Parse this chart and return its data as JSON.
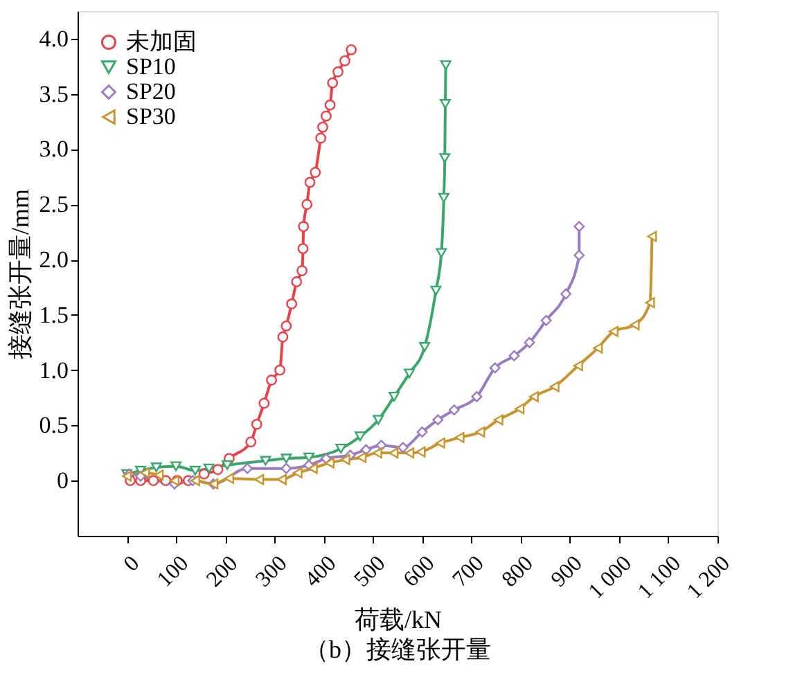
{
  "chart_data": {
    "type": "line",
    "title": "（b）接缝张开量",
    "xlabel": "荷载/kN",
    "ylabel": "接缝张开量/mm",
    "xlim": [
      -100,
      1200
    ],
    "ylim": [
      -0.5,
      4.25
    ],
    "xticks": [
      0,
      100,
      200,
      300,
      400,
      500,
      600,
      700,
      800,
      900,
      {
        "value": 1000,
        "label": "1 000"
      },
      {
        "value": 1100,
        "label": "1 100"
      },
      {
        "value": 1200,
        "label": "1 200"
      }
    ],
    "yticks": [
      0,
      0.5,
      {
        "value": 1,
        "label": "1.0"
      },
      1.5,
      {
        "value": 2,
        "label": "2.0"
      },
      2.5,
      {
        "value": 3,
        "label": "3.0"
      },
      3.5,
      {
        "value": 4,
        "label": "4.0"
      }
    ],
    "grid": false,
    "legend": "top left",
    "line_style": "solid",
    "series": [
      {
        "name": "未加固",
        "color": "#e8424a",
        "marker": "circle",
        "x": [
          7,
          28,
          54,
          79,
          102,
          125,
          157,
          185,
          208,
          252,
          264,
          279,
          294,
          311,
          317,
          324,
          335,
          345,
          356,
          358,
          359,
          366,
          372,
          383,
          394,
          398,
          405,
          413,
          418,
          429,
          443,
          456
        ],
        "values": [
          0,
          0,
          0,
          0,
          0,
          0,
          0.06,
          0.1,
          0.2,
          0.35,
          0.51,
          0.7,
          0.91,
          1.0,
          1.3,
          1.4,
          1.6,
          1.8,
          1.9,
          2.1,
          2.3,
          2.5,
          2.7,
          2.79,
          3.1,
          3.2,
          3.3,
          3.4,
          3.6,
          3.7,
          3.8,
          3.9
        ]
      },
      {
        "name": "SP10",
        "color": "#3aa66a",
        "marker": "triangle-down",
        "x": [
          0,
          28,
          60,
          100,
          139,
          167,
          204,
          282,
          324,
          370,
          435,
          474,
          511,
          543,
          574,
          605,
          628,
          639,
          644,
          646,
          647,
          648
        ],
        "values": [
          0.06,
          0.09,
          0.12,
          0.13,
          0.09,
          0.11,
          0.14,
          0.18,
          0.2,
          0.21,
          0.29,
          0.4,
          0.55,
          0.76,
          0.97,
          1.21,
          1.72,
          2.06,
          2.56,
          2.92,
          3.41,
          3.76
        ]
      },
      {
        "name": "SP20",
        "color": "#9b7bc0",
        "marker": "diamond",
        "x": [
          5,
          28,
          97,
          134,
          176,
          245,
          324,
          370,
          405,
          454,
          486,
          517,
          561,
          600,
          632,
          665,
          711,
          748,
          787,
          818,
          852,
          892,
          919,
          919
        ],
        "values": [
          0.06,
          0.04,
          -0.03,
          0,
          -0.03,
          0.11,
          0.11,
          0.14,
          0.2,
          0.23,
          0.28,
          0.32,
          0.3,
          0.44,
          0.55,
          0.64,
          0.76,
          1.02,
          1.13,
          1.25,
          1.45,
          1.69,
          2.04,
          2.3
        ]
      },
      {
        "name": "SP30",
        "color": "#c8942e",
        "marker": "triangle-left",
        "x": [
          0,
          37,
          65,
          97,
          139,
          176,
          208,
          269,
          315,
          347,
          378,
          412,
          444,
          477,
          509,
          542,
          574,
          597,
          637,
          676,
          718,
          755,
          798,
          827,
          869,
          917,
          957,
          989,
          1032,
          1063,
          1067
        ],
        "values": [
          0.04,
          0.07,
          0.05,
          0,
          0,
          -0.03,
          0.02,
          0.01,
          0.01,
          0.07,
          0.11,
          0.16,
          0.19,
          0.21,
          0.25,
          0.25,
          0.25,
          0.26,
          0.34,
          0.39,
          0.44,
          0.55,
          0.65,
          0.76,
          0.85,
          1.04,
          1.2,
          1.35,
          1.41,
          1.61,
          2.21
        ]
      }
    ]
  }
}
